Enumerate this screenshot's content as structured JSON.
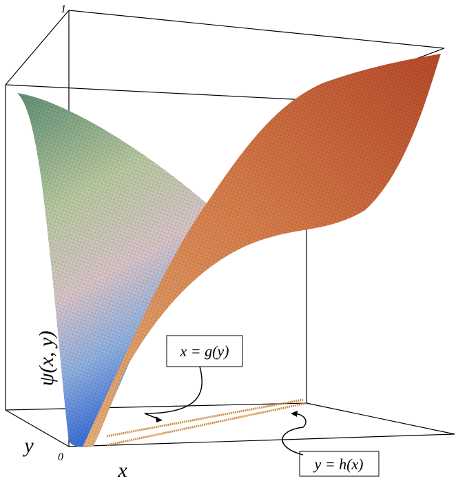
{
  "axes": {
    "z_top": "1",
    "origin": "0",
    "z_label": "ψ(x, y)",
    "x_label": "x",
    "y_label": "y"
  },
  "annotations": {
    "g": "x = g(y)",
    "h": "y = h(x)"
  }
}
